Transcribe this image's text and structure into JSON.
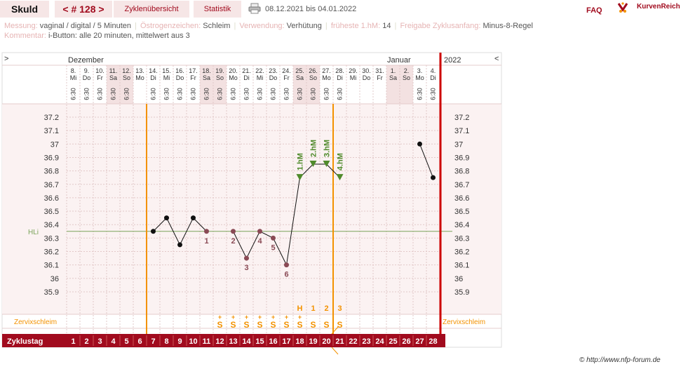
{
  "header": {
    "name": "Skuld",
    "cycle": "< # 128 >",
    "tab_overview": "Zyklenübersicht",
    "tab_statistics": "Statistik",
    "date_range": "08.12.2021 bis 04.01.2022",
    "faq": "FAQ",
    "logo": "KurvenReich"
  },
  "meta": {
    "messung_label": "Messung:",
    "messung_value": "vaginal / digital / 5 Minuten",
    "oestrogen_label": "Östrogenzeichen:",
    "oestrogen_value": "Schleim",
    "verwendung_label": "Verwendung:",
    "verwendung_value": "Verhütung",
    "fhm_label": "früheste 1.hM:",
    "fhm_value": "14",
    "freigabe_label": "Freigabe Zyklusanfang:",
    "freigabe_value": "Minus-8-Regel",
    "kommentar_label": "Kommentar:",
    "kommentar_value": "i-Button: alle 20 minuten, mittelwert aus 3"
  },
  "copyright": "© http://www.nfp-forum.de",
  "colors": {
    "accent": "#a10b1e",
    "orange": "#f39200",
    "green": "#4f8a2b",
    "weekend": "#f3e1e1",
    "plot_bg": "#fbf2f2"
  },
  "chart_data": {
    "type": "line",
    "nav_left": ">",
    "nav_right": "<",
    "month_labels": [
      "Dezember",
      "Januar",
      "2022"
    ],
    "dates": [
      "8.",
      "9.",
      "10.",
      "11.",
      "12.",
      "13.",
      "14.",
      "15.",
      "16.",
      "17.",
      "18.",
      "19.",
      "20.",
      "21.",
      "22.",
      "23.",
      "24.",
      "25.",
      "26.",
      "27.",
      "28.",
      "29.",
      "30.",
      "31.",
      "1.",
      "2.",
      "3.",
      "4."
    ],
    "weekdays": [
      "Mi",
      "Do",
      "Fr",
      "Sa",
      "So",
      "Mo",
      "Di",
      "Mi",
      "Do",
      "Fr",
      "Sa",
      "So",
      "Mo",
      "Di",
      "Mi",
      "Do",
      "Fr",
      "Sa",
      "So",
      "Mo",
      "Di",
      "Mi",
      "Do",
      "Fr",
      "Sa",
      "So",
      "Mo",
      "Di"
    ],
    "weekend": [
      false,
      false,
      false,
      true,
      true,
      false,
      false,
      false,
      false,
      false,
      true,
      true,
      false,
      false,
      false,
      false,
      false,
      true,
      true,
      false,
      false,
      false,
      false,
      false,
      true,
      true,
      false,
      false
    ],
    "times": [
      "6:30",
      "6:30",
      "6:30",
      "6:30",
      "6:30",
      "",
      "6:30",
      "6:30",
      "6:30",
      "6:30",
      "6:30",
      "6:30",
      "6:30",
      "6:30",
      "6:30",
      "6:30",
      "6:30",
      "6:30",
      "6:30",
      "6:30",
      "6:30",
      "",
      "",
      "",
      "",
      "",
      "6:30",
      "6:30"
    ],
    "y_ticks": [
      "37.2",
      "37.1",
      "37",
      "36.9",
      "36.8",
      "36.7",
      "36.6",
      "36.5",
      "36.4",
      "36.3",
      "36.2",
      "36.1",
      "36",
      "35.9"
    ],
    "ylim": [
      35.9,
      37.2
    ],
    "temperatures": [
      null,
      null,
      null,
      null,
      null,
      null,
      36.35,
      36.45,
      36.25,
      36.45,
      36.35,
      null,
      36.35,
      36.15,
      36.35,
      36.3,
      36.1,
      36.75,
      36.85,
      36.85,
      36.75,
      null,
      null,
      null,
      null,
      null,
      37.0,
      36.75
    ],
    "coverline_value": 36.35,
    "coverline_label": "HLi",
    "low_labels": [
      {
        "day": 11,
        "label": "1"
      },
      {
        "day": 13,
        "label": "2"
      },
      {
        "day": 14,
        "label": "3"
      },
      {
        "day": 15,
        "label": "4"
      },
      {
        "day": 16,
        "label": "5"
      },
      {
        "day": 17,
        "label": "6"
      }
    ],
    "high_labels": [
      {
        "day": 18,
        "label": "1.hM"
      },
      {
        "day": 19,
        "label": "2.hM"
      },
      {
        "day": 20,
        "label": "3.hM"
      },
      {
        "day": 21,
        "label": "4.hM"
      }
    ],
    "mucus_label": "Zervixschleim",
    "mucus": [
      "",
      "",
      "",
      "",
      "",
      "",
      "",
      "",
      "",
      "",
      "",
      "S+",
      "S+",
      "S+",
      "S+",
      "S+",
      "S+",
      "S+",
      "S",
      "S",
      "S",
      "",
      "",
      "",
      "",
      "",
      "",
      ""
    ],
    "peak_labels": [
      {
        "day": 18,
        "label": "H"
      },
      {
        "day": 19,
        "label": "1"
      },
      {
        "day": 20,
        "label": "2"
      },
      {
        "day": 21,
        "label": "3"
      }
    ],
    "cycle_label": "Zyklustag",
    "cycle_days": [
      "1",
      "2",
      "3",
      "4",
      "5",
      "6",
      "7",
      "8",
      "9",
      "10",
      "11",
      "12",
      "13",
      "14",
      "15",
      "16",
      "17",
      "18",
      "19",
      "20",
      "21",
      "22",
      "23",
      "24",
      "25",
      "26",
      "27",
      "28"
    ],
    "vline_orange_days": [
      7,
      21
    ],
    "vline_red_after_day": 28
  }
}
